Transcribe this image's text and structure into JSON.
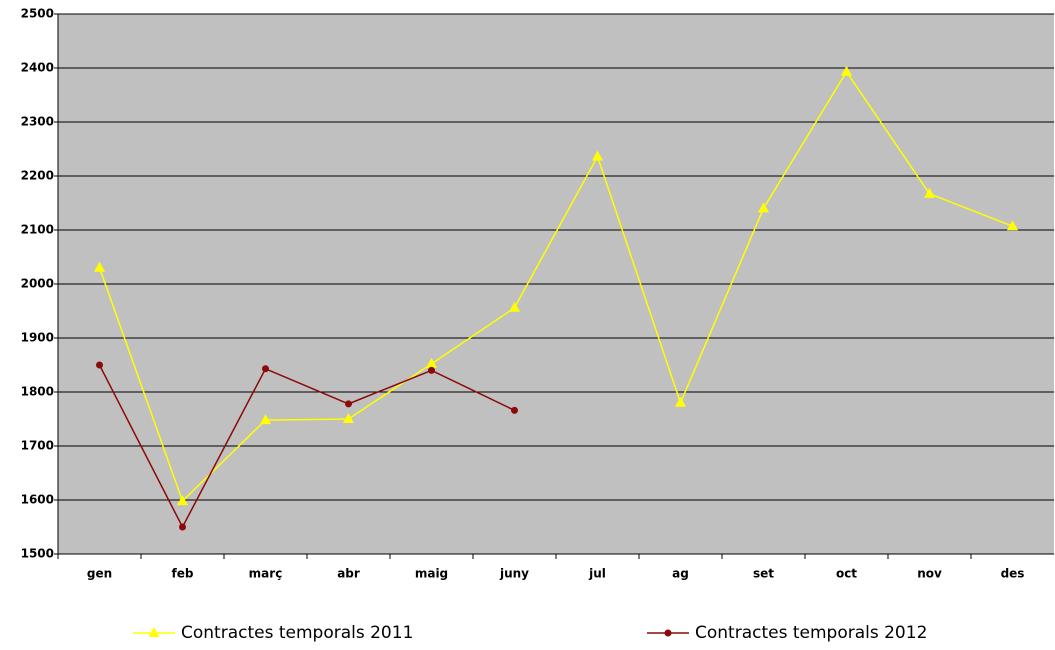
{
  "chart_data": {
    "type": "line",
    "categories": [
      "gen",
      "feb",
      "març",
      "abr",
      "maig",
      "juny",
      "jul",
      "ag",
      "set",
      "oct",
      "nov",
      "des"
    ],
    "series": [
      {
        "name": "Contractes temporals 2011",
        "color": "#ffff00",
        "marker": "triangle",
        "values": [
          2030,
          1598,
          1748,
          1750,
          1852,
          1956,
          2236,
          1780,
          2140,
          2393,
          2167,
          2107
        ]
      },
      {
        "name": "Contractes temporals 2012",
        "color": "#8b0a0a",
        "marker": "circle",
        "values": [
          1850,
          1550,
          1843,
          1778,
          1840,
          1766,
          null,
          null,
          null,
          null,
          null,
          null
        ]
      }
    ],
    "ylim": [
      1500,
      2500
    ],
    "yticks": [
      1500,
      1600,
      1700,
      1800,
      1900,
      2000,
      2100,
      2200,
      2300,
      2400,
      2500
    ],
    "grid": true,
    "legend": "bottom",
    "plot_background": "#c0c0c0"
  }
}
